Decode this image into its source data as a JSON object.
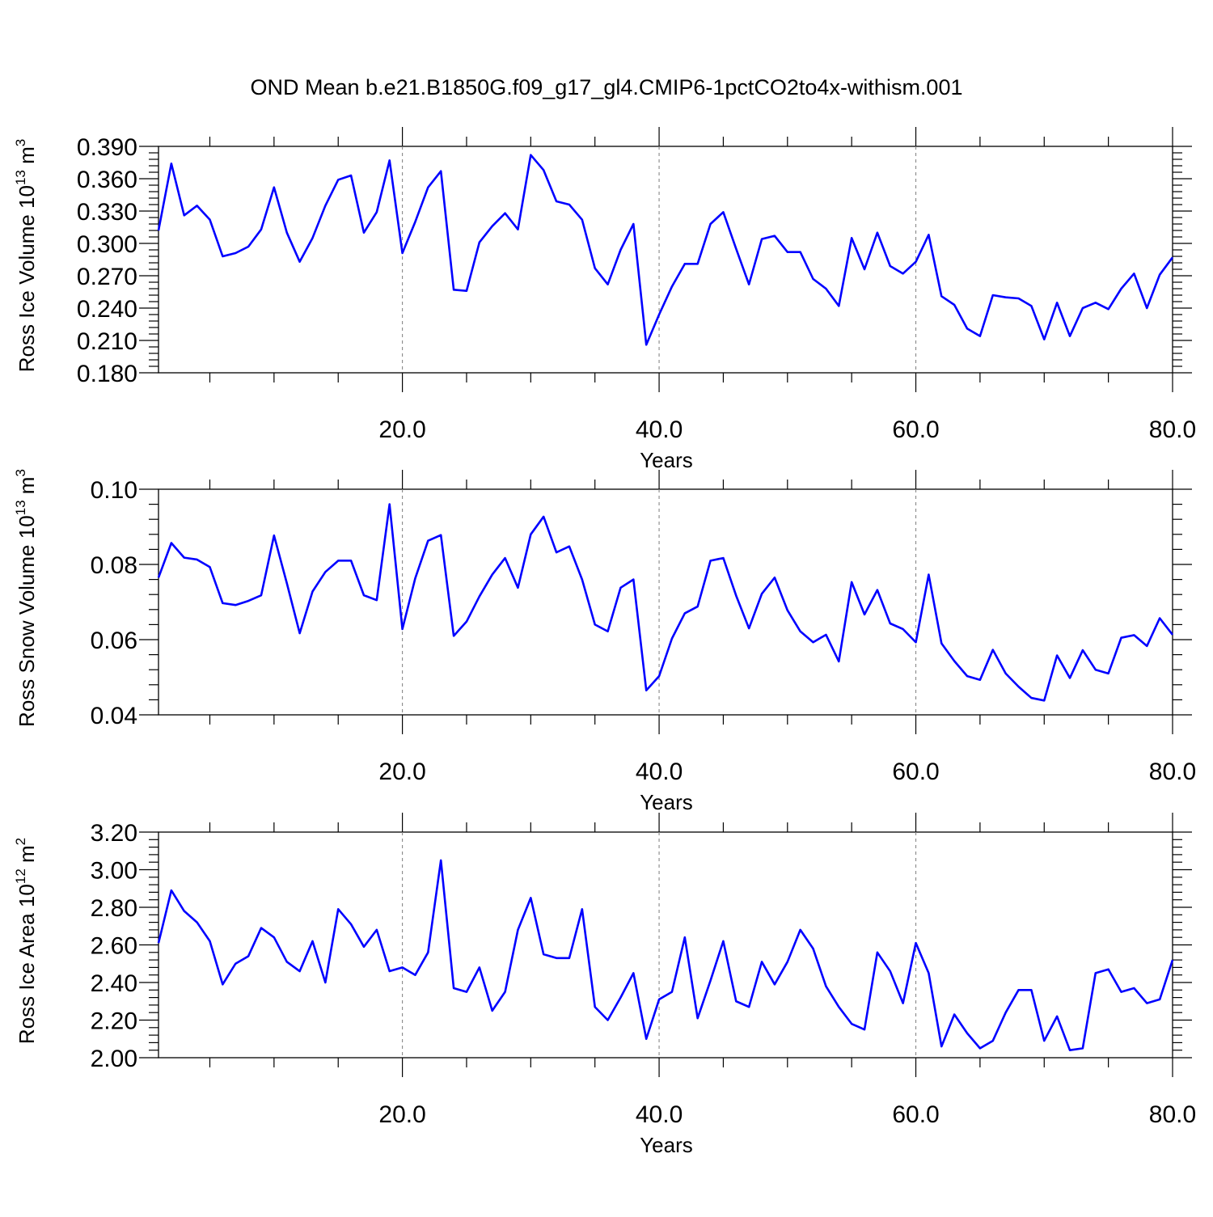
{
  "title": "OND Mean b.e21.B1850G.f09_g17_gl4.CMIP6-1pctCO2to4x-withism.001",
  "colors": {
    "series": "#0000ff",
    "axes": "#000000",
    "grid": "#888888"
  },
  "chart_data": [
    {
      "type": "line",
      "ylabel": {
        "main": "Ross Ice Volume 10",
        "sup": "13",
        "unit": " m",
        "unit_sup": "3"
      },
      "xlabel": "Years",
      "xlim": [
        1,
        80
      ],
      "ylim": [
        0.18,
        0.39
      ],
      "yticks": [
        "0.180",
        "0.210",
        "0.240",
        "0.270",
        "0.300",
        "0.330",
        "0.360",
        "0.390"
      ],
      "xticks": [
        "20.0",
        "40.0",
        "60.0",
        "80.0"
      ],
      "grid_x": [
        20,
        40,
        60
      ],
      "series": [
        {
          "values": [
            0.312,
            0.374,
            0.326,
            0.335,
            0.322,
            0.288,
            0.291,
            0.297,
            0.313,
            0.352,
            0.31,
            0.283,
            0.305,
            0.335,
            0.359,
            0.363,
            0.31,
            0.329,
            0.377,
            0.291,
            0.32,
            0.352,
            0.367,
            0.257,
            0.256,
            0.301,
            0.316,
            0.328,
            0.313,
            0.382,
            0.368,
            0.339,
            0.336,
            0.322,
            0.277,
            0.262,
            0.294,
            0.318,
            0.206,
            0.234,
            0.26,
            0.281,
            0.281,
            0.318,
            0.329,
            0.295,
            0.262,
            0.304,
            0.307,
            0.292,
            0.292,
            0.267,
            0.258,
            0.242,
            0.305,
            0.276,
            0.31,
            0.279,
            0.272,
            0.283,
            0.308,
            0.251,
            0.243,
            0.221,
            0.214,
            0.252,
            0.25,
            0.249,
            0.242,
            0.211,
            0.245,
            0.214,
            0.24,
            0.245,
            0.239,
            0.258,
            0.272,
            0.24,
            0.271,
            0.287
          ]
        }
      ]
    },
    {
      "type": "line",
      "ylabel": {
        "main": "Ross Snow Volume 10",
        "sup": "13",
        "unit": " m",
        "unit_sup": "3"
      },
      "xlabel": "Years",
      "xlim": [
        1,
        80
      ],
      "ylim": [
        0.04,
        0.1
      ],
      "yticks": [
        "0.04",
        "0.06",
        "0.08",
        "0.10"
      ],
      "xticks": [
        "20.0",
        "40.0",
        "60.0",
        "80.0"
      ],
      "grid_x": [
        20,
        40,
        60
      ],
      "series": [
        {
          "values": [
            0.0765,
            0.0857,
            0.0818,
            0.0813,
            0.0793,
            0.0697,
            0.0692,
            0.0703,
            0.0718,
            0.0877,
            0.075,
            0.0617,
            0.0728,
            0.078,
            0.081,
            0.081,
            0.0718,
            0.0705,
            0.096,
            0.0628,
            0.0763,
            0.0863,
            0.0878,
            0.061,
            0.0648,
            0.0715,
            0.0773,
            0.0817,
            0.0738,
            0.088,
            0.0927,
            0.0832,
            0.0848,
            0.076,
            0.064,
            0.0622,
            0.0738,
            0.076,
            0.0465,
            0.0503,
            0.0603,
            0.067,
            0.0688,
            0.081,
            0.0817,
            0.0717,
            0.063,
            0.0722,
            0.0765,
            0.0678,
            0.0622,
            0.0593,
            0.0613,
            0.0542,
            0.0753,
            0.0667,
            0.0732,
            0.0643,
            0.0628,
            0.0593,
            0.0773,
            0.059,
            0.0543,
            0.0503,
            0.0493,
            0.0573,
            0.051,
            0.0475,
            0.0445,
            0.0438,
            0.0558,
            0.0498,
            0.0572,
            0.052,
            0.051,
            0.0605,
            0.0612,
            0.0583,
            0.0657,
            0.0613
          ]
        }
      ]
    },
    {
      "type": "line",
      "ylabel": {
        "main": "Ross Ice Area 10",
        "sup": "12",
        "unit": " m",
        "unit_sup": "2"
      },
      "xlabel": "Years",
      "xlim": [
        1,
        80
      ],
      "ylim": [
        2.0,
        3.2
      ],
      "yticks": [
        "2.00",
        "2.20",
        "2.40",
        "2.60",
        "2.80",
        "3.00",
        "3.20"
      ],
      "xticks": [
        "20.0",
        "40.0",
        "60.0",
        "80.0"
      ],
      "grid_x": [
        20,
        40,
        60
      ],
      "series": [
        {
          "values": [
            2.61,
            2.89,
            2.78,
            2.72,
            2.62,
            2.39,
            2.5,
            2.54,
            2.69,
            2.64,
            2.51,
            2.46,
            2.62,
            2.4,
            2.79,
            2.71,
            2.59,
            2.68,
            2.46,
            2.48,
            2.44,
            2.56,
            3.05,
            2.37,
            2.35,
            2.48,
            2.25,
            2.35,
            2.68,
            2.85,
            2.55,
            2.53,
            2.53,
            2.79,
            2.27,
            2.2,
            2.32,
            2.45,
            2.1,
            2.31,
            2.35,
            2.64,
            2.21,
            2.41,
            2.62,
            2.3,
            2.27,
            2.51,
            2.39,
            2.51,
            2.68,
            2.58,
            2.38,
            2.27,
            2.18,
            2.15,
            2.56,
            2.46,
            2.29,
            2.61,
            2.45,
            2.06,
            2.23,
            2.13,
            2.05,
            2.09,
            2.24,
            2.36,
            2.36,
            2.09,
            2.22,
            2.04,
            2.05,
            2.45,
            2.47,
            2.35,
            2.37,
            2.29,
            2.31,
            2.52
          ]
        }
      ]
    }
  ]
}
